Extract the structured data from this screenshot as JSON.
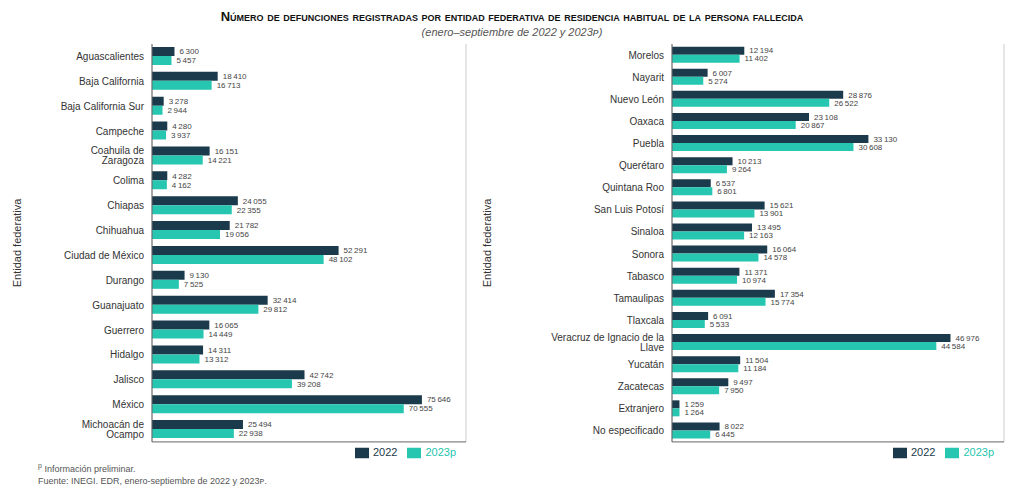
{
  "chart_data": [
    {
      "type": "bar",
      "title": "Número de defunciones registradas por entidad federativa de residencia habitual de la persona fallecida",
      "subtitle": "(enero–septiembre de 2022 y 2023ᴘ)",
      "annotations": [
        "p",
        "Información preliminar.",
        "Fuente: INEGI. EDR, enero-septiembre de 2022 y 2023ᴘ."
      ],
      "orientation": "horizontal",
      "ylabel": "Entidad federativa",
      "categories": [
        "Aguascalientes",
        "Baja California",
        "Baja California Sur",
        "Campeche",
        "Coahuila de Zaragoza",
        "Colima",
        "Chiapas",
        "Chihuahua",
        "Ciudad de México",
        "Durango",
        "Guanajuato",
        "Guerrero",
        "Hidalgo",
        "Jalisco",
        "México",
        "Michoacán de Ocampo"
      ],
      "series": [
        {
          "name": "2022",
          "color": "#1b3a4b",
          "values": [
            6300,
            18410,
            3278,
            4280,
            16151,
            4282,
            24055,
            21782,
            52291,
            9130,
            32414,
            16065,
            14311,
            42742,
            75646,
            25494
          ],
          "value_labels": [
            "6 300",
            "18 410",
            "3 278",
            "4 280",
            "16 151",
            "4 282",
            "24 055",
            "21 782",
            "52 291",
            "9 130",
            "32 414",
            "16 065",
            "14 311",
            "42 742",
            "75 646",
            "25 494"
          ]
        },
        {
          "name": "2023p",
          "color": "#26c6b0",
          "values": [
            5457,
            16713,
            2944,
            3937,
            14221,
            4162,
            22355,
            19056,
            48102,
            7525,
            29812,
            14449,
            13312,
            39208,
            70555,
            22938
          ],
          "value_labels": [
            "5 457",
            "16 713",
            "2 944",
            "3 937",
            "14 221",
            "4 162",
            "22 355",
            "19 056",
            "48 102",
            "7 525",
            "29 812",
            "14 449",
            "13 312",
            "39 208",
            "70 555",
            "22 938"
          ]
        }
      ],
      "xlim": [
        0,
        88000
      ],
      "xticks": [
        0,
        20000,
        40000,
        60000,
        80000
      ],
      "grid": true,
      "legend": "lower right",
      "data_labels": true,
      "tick_labels": "y"
    },
    {
      "type": "bar",
      "orientation": "horizontal",
      "ylabel": "Entidad federativa",
      "categories": [
        "Morelos",
        "Nayarit",
        "Nuevo León",
        "Oaxaca",
        "Puebla",
        "Querétaro",
        "Quintana Roo",
        "San Luis Potosí",
        "Sinaloa",
        "Sonora",
        "Tabasco",
        "Tamaulipas",
        "Tlaxcala",
        "Veracruz de Ignacio de la Llave",
        "Yucatán",
        "Zacatecas",
        "Extranjero",
        "No especificado"
      ],
      "series": [
        {
          "name": "2022",
          "color": "#1b3a4b",
          "values": [
            12194,
            6007,
            28876,
            23108,
            33130,
            10213,
            6537,
            15621,
            13495,
            16064,
            11371,
            17354,
            6091,
            46976,
            11504,
            9497,
            1259,
            8022
          ],
          "value_labels": [
            "12 194",
            "6 007",
            "28 876",
            "23 108",
            "33 130",
            "10 213",
            "6 537",
            "15 621",
            "13 495",
            "16 064",
            "11 371",
            "17 354",
            "6 091",
            "46 976",
            "11 504",
            "9 497",
            "1 259",
            "8 022"
          ]
        },
        {
          "name": "2023p",
          "color": "#26c6b0",
          "values": [
            11402,
            5274,
            26522,
            20867,
            30608,
            9264,
            6801,
            13901,
            12163,
            14578,
            10974,
            15774,
            5533,
            44584,
            11184,
            7950,
            1264,
            6445
          ],
          "value_labels": [
            "11 402",
            "5 274",
            "26 522",
            "20 867",
            "30 608",
            "9 264",
            "6 801",
            "13 901",
            "12 163",
            "14 578",
            "10 974",
            "15 774",
            "5 533",
            "44 584",
            "11 184",
            "7 950",
            "1 264",
            "6 445"
          ]
        }
      ],
      "xlim": [
        0,
        56000
      ],
      "xticks": [
        0,
        10000,
        20000,
        30000,
        40000,
        50000
      ],
      "grid": true,
      "legend": "lower right",
      "data_labels": true,
      "tick_labels": "y"
    }
  ]
}
